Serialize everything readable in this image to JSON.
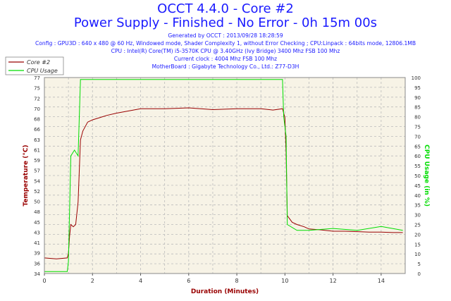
{
  "header": {
    "title_line1": "OCCT 4.4.0 - Core #2",
    "title_line2": "Power Supply - Finished - No Error - 0h 15m 00s",
    "info_lines": [
      "Generated by OCCT : 2013/09/28 18:28:59",
      "Config : GPU3D : 640 x 480 @ 60 Hz, Windowed mode, Shader Complexity 1, without Error Checking ; CPU:Linpack : 64bits mode, 12806.1MB",
      "CPU : Intel(R) Core(TM) i5-3570K CPU @ 3.40GHz (Ivy Bridge) 3400 Mhz FSB 100 Mhz",
      "Current clock : 4004 Mhz FSB 100 Mhz",
      "MotherBoard : Gigabyte Technology Co., Ltd.: Z77-D3H"
    ]
  },
  "colors": {
    "temperature": "#990000",
    "cpu_usage": "#00dd00",
    "title": "#1a1aff",
    "plot_bg": "#f7f3e6",
    "grid": "#bbbbbb"
  },
  "chart_data": {
    "type": "line",
    "xlabel": "Duration (Minutes)",
    "ylabel_left": "Temperature (°C)",
    "ylabel_right": "CPU Usage (in %)",
    "xlim": [
      0,
      15
    ],
    "ylim_left": [
      34,
      78
    ],
    "ylim_right": [
      0,
      100
    ],
    "x_ticks": [
      "0",
      "2",
      "4",
      "6",
      "8",
      "10",
      "12",
      "14"
    ],
    "y_ticks_left": [
      "34",
      "36",
      "39",
      "41",
      "43",
      "45",
      "48",
      "50",
      "52",
      "54",
      "57",
      "59",
      "61",
      "63",
      "66",
      "68",
      "70",
      "72",
      "75",
      "77"
    ],
    "y_ticks_right": [
      "0",
      "5",
      "10",
      "15",
      "20",
      "25",
      "30",
      "35",
      "40",
      "45",
      "50",
      "55",
      "60",
      "65",
      "70",
      "75",
      "80",
      "85",
      "90",
      "95",
      "100"
    ],
    "grid": true,
    "legend_placement": "top-left",
    "series": [
      {
        "name": "Core #2",
        "axis": "left",
        "x": [
          0,
          0.5,
          0.95,
          1.0,
          1.05,
          1.1,
          1.2,
          1.3,
          1.4,
          1.5,
          1.6,
          1.8,
          2.0,
          2.3,
          2.6,
          3.0,
          3.5,
          4.0,
          5.0,
          6.0,
          7.0,
          8.0,
          9.0,
          9.5,
          9.9,
          10.0,
          10.05,
          10.1,
          10.3,
          10.5,
          10.8,
          11.0,
          11.5,
          12.0,
          12.5,
          13.0,
          13.5,
          14.0,
          14.5,
          14.9
        ],
        "y": [
          37.5,
          37.3,
          37.5,
          38.5,
          42.5,
          45,
          44.5,
          45,
          50,
          64,
          66,
          68,
          68.5,
          69,
          69.5,
          70,
          70.5,
          71,
          71,
          71.2,
          70.8,
          71,
          71,
          70.7,
          71,
          69,
          61,
          47,
          45.5,
          45,
          44.5,
          44,
          43.8,
          43.5,
          43.5,
          43.4,
          43.3,
          43.3,
          43.2,
          43.2
        ]
      },
      {
        "name": "CPU Usage",
        "axis": "right",
        "x": [
          0,
          0.5,
          0.95,
          1.0,
          1.1,
          1.25,
          1.4,
          1.5,
          1.55,
          1.6,
          2.0,
          4.0,
          6.0,
          8.0,
          9.9,
          9.95,
          10.0,
          10.05,
          10.1,
          10.5,
          11.0,
          12.0,
          13.0,
          14.0,
          14.9
        ],
        "y": [
          1,
          1,
          1,
          6,
          60,
          63,
          60,
          99,
          99,
          99,
          99,
          99,
          99,
          99,
          99,
          80,
          75,
          70,
          25,
          22,
          22,
          23,
          22,
          24,
          22
        ]
      }
    ]
  }
}
